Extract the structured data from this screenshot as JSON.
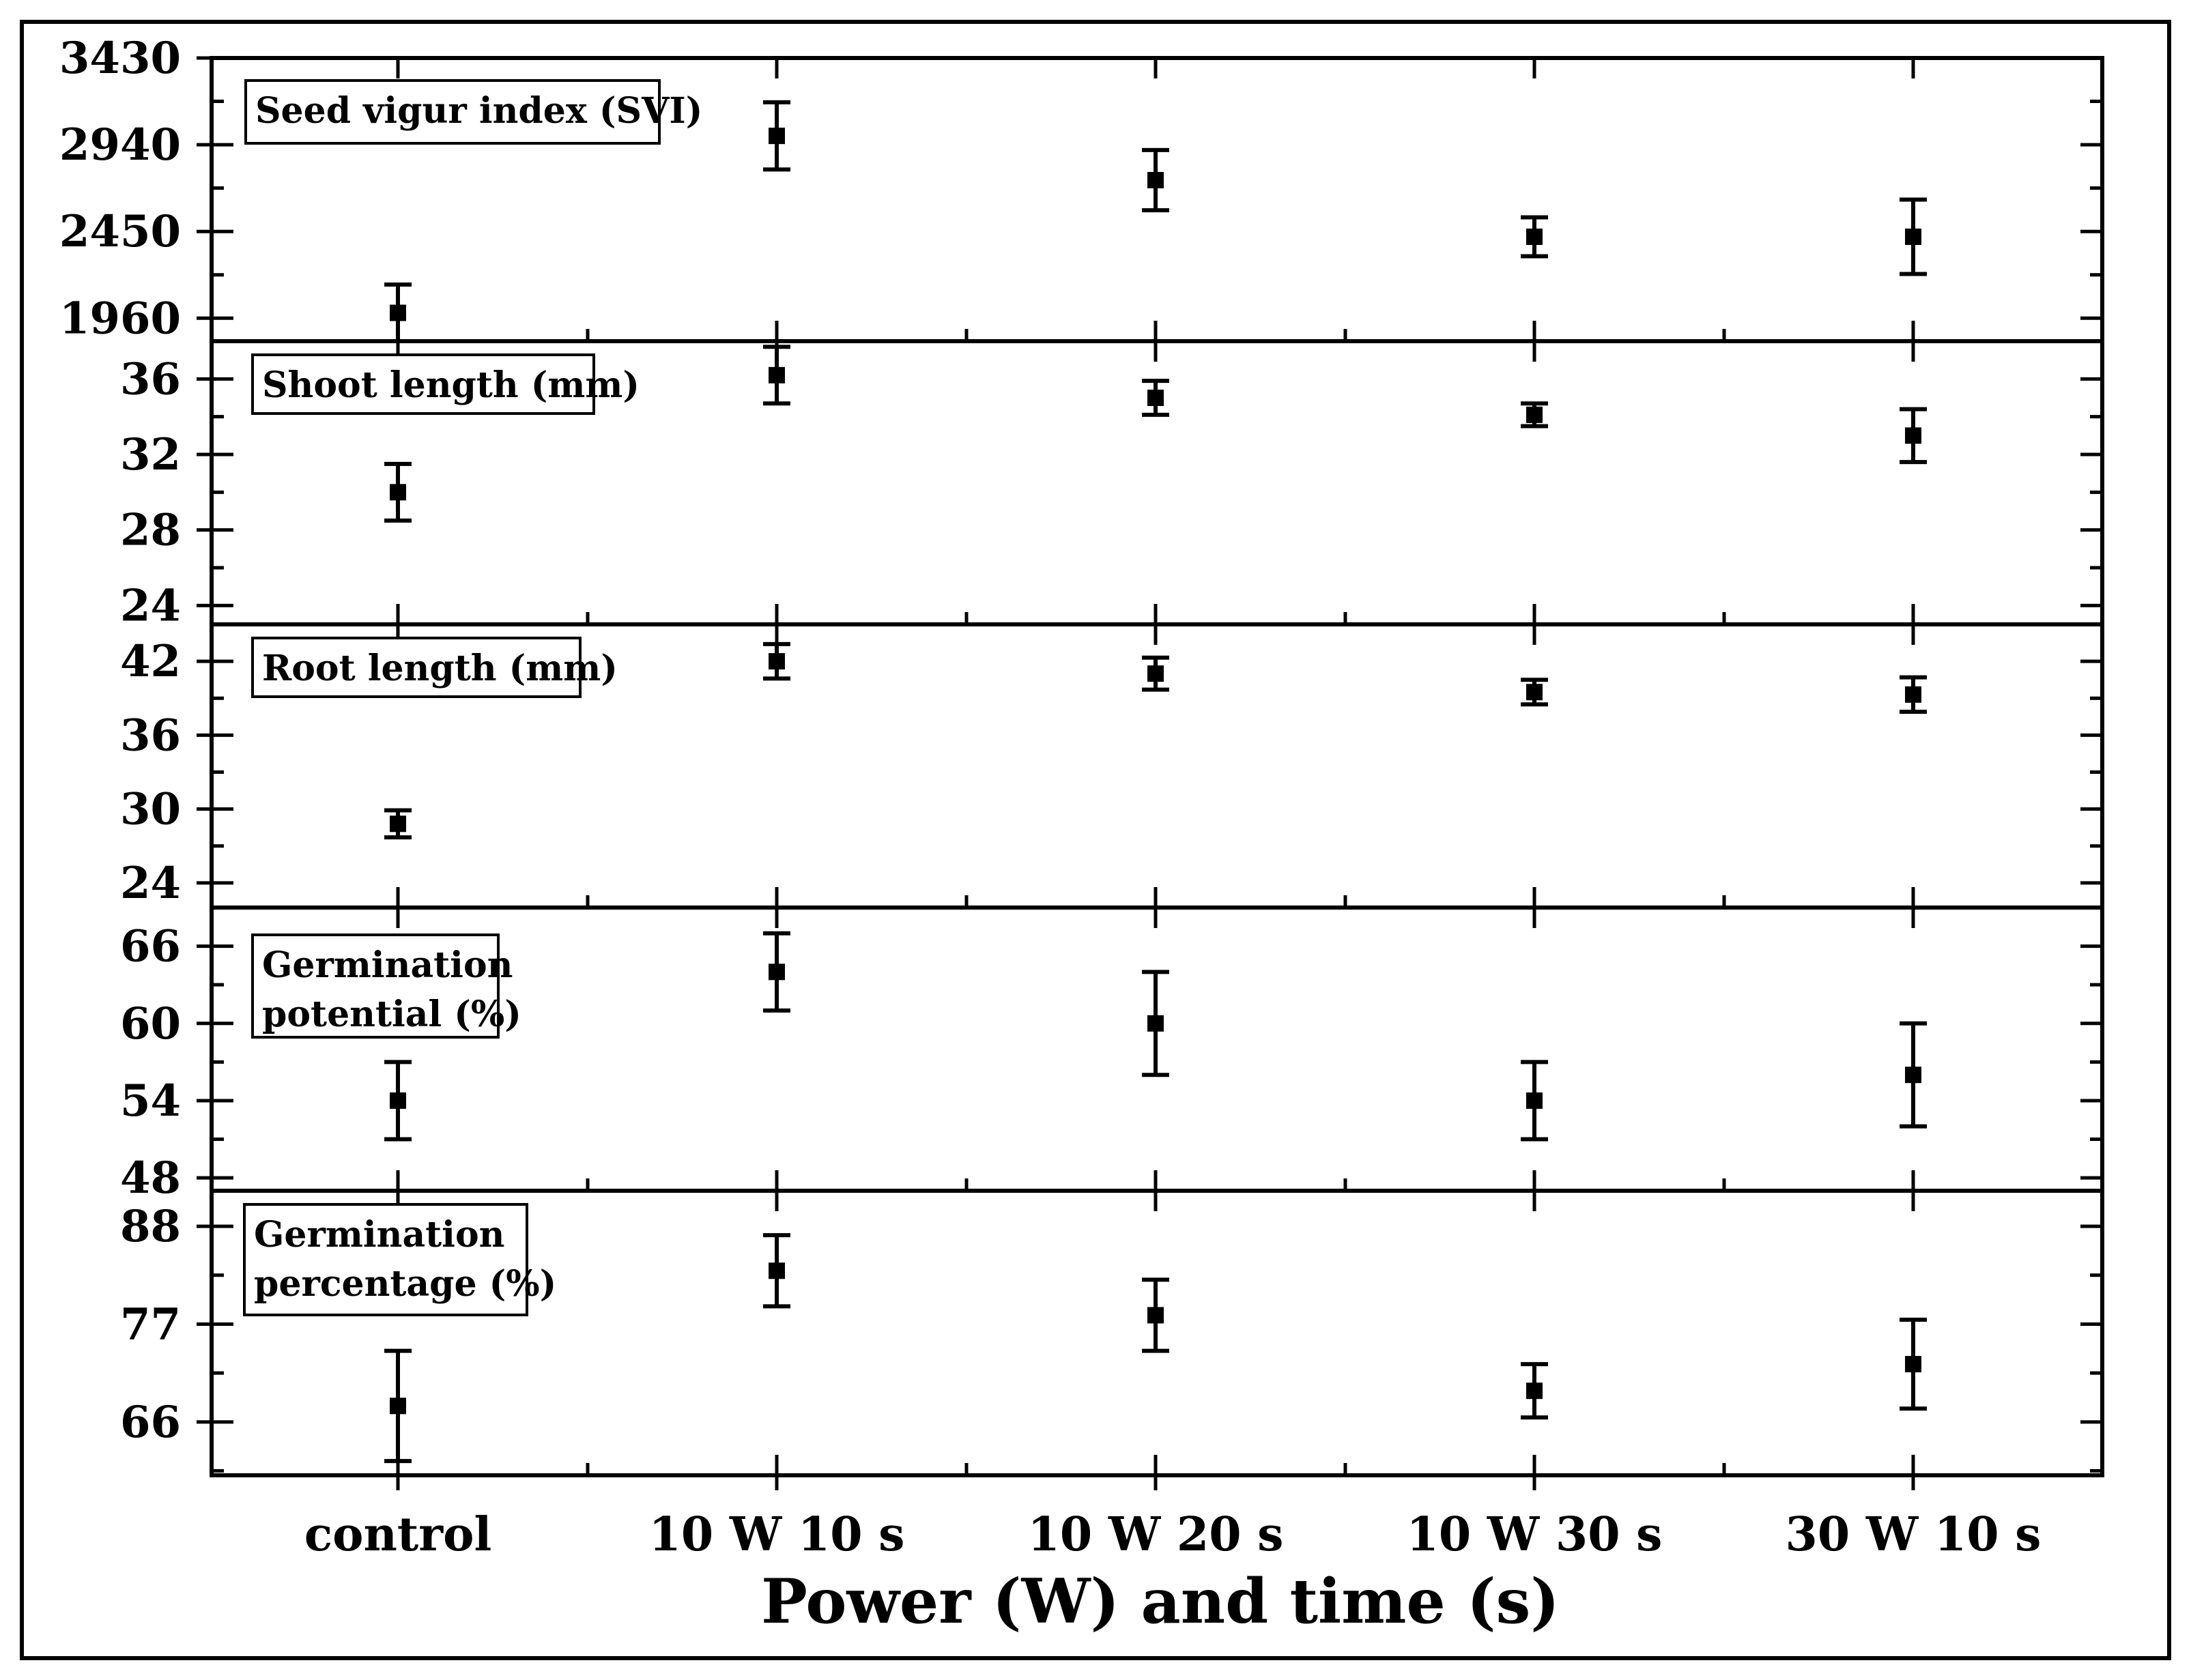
{
  "chart_data": {
    "type": "scatter",
    "xlabel": "Power (W) and time (s)",
    "categories": [
      "control",
      "10 W 10 s",
      "10 W 20 s",
      "10 W 30 s",
      "30 W 10 s"
    ],
    "panels": [
      {
        "title": [
          "Seed vigur index (SVI)"
        ],
        "ylim": [
          1830,
          3430
        ],
        "yticks": [
          1960,
          2450,
          2940,
          3430
        ],
        "series": [
          {
            "values": [
              1990,
              2990,
              2740,
              2420,
              2420
            ],
            "errors": [
              160,
              190,
              170,
              110,
              210
            ]
          }
        ]
      },
      {
        "title": [
          "Shoot length (mm)"
        ],
        "ylim": [
          23,
          38
        ],
        "yticks": [
          24,
          28,
          32,
          36
        ],
        "series": [
          {
            "values": [
              30,
              36.2,
              35,
              34.1,
              33
            ],
            "errors": [
              1.5,
              1.5,
              0.9,
              0.6,
              1.4
            ]
          }
        ]
      },
      {
        "title": [
          "Root length (mm)"
        ],
        "ylim": [
          22,
          45
        ],
        "yticks": [
          24,
          30,
          36,
          42
        ],
        "series": [
          {
            "values": [
              28.8,
              42,
              41,
              39.5,
              39.3
            ],
            "errors": [
              1.1,
              1.4,
              1.3,
              1.0,
              1.4
            ]
          }
        ]
      },
      {
        "title": [
          "Germination",
          "potential (%)"
        ],
        "ylim": [
          47,
          69
        ],
        "yticks": [
          48,
          54,
          60,
          66
        ],
        "series": [
          {
            "values": [
              54,
              64,
              60,
              54,
              56
            ],
            "errors": [
              3,
              3,
              4,
              3,
              4
            ]
          }
        ]
      },
      {
        "title": [
          "Germination",
          "percentage (%)"
        ],
        "ylim": [
          60,
          92
        ],
        "yticks": [
          66,
          77,
          88
        ],
        "series": [
          {
            "values": [
              67.8,
              83,
              78,
              69.5,
              72.5
            ],
            "errors": [
              6.2,
              4,
              4,
              3,
              5
            ]
          }
        ]
      }
    ],
    "grid": false,
    "legend": "none"
  }
}
